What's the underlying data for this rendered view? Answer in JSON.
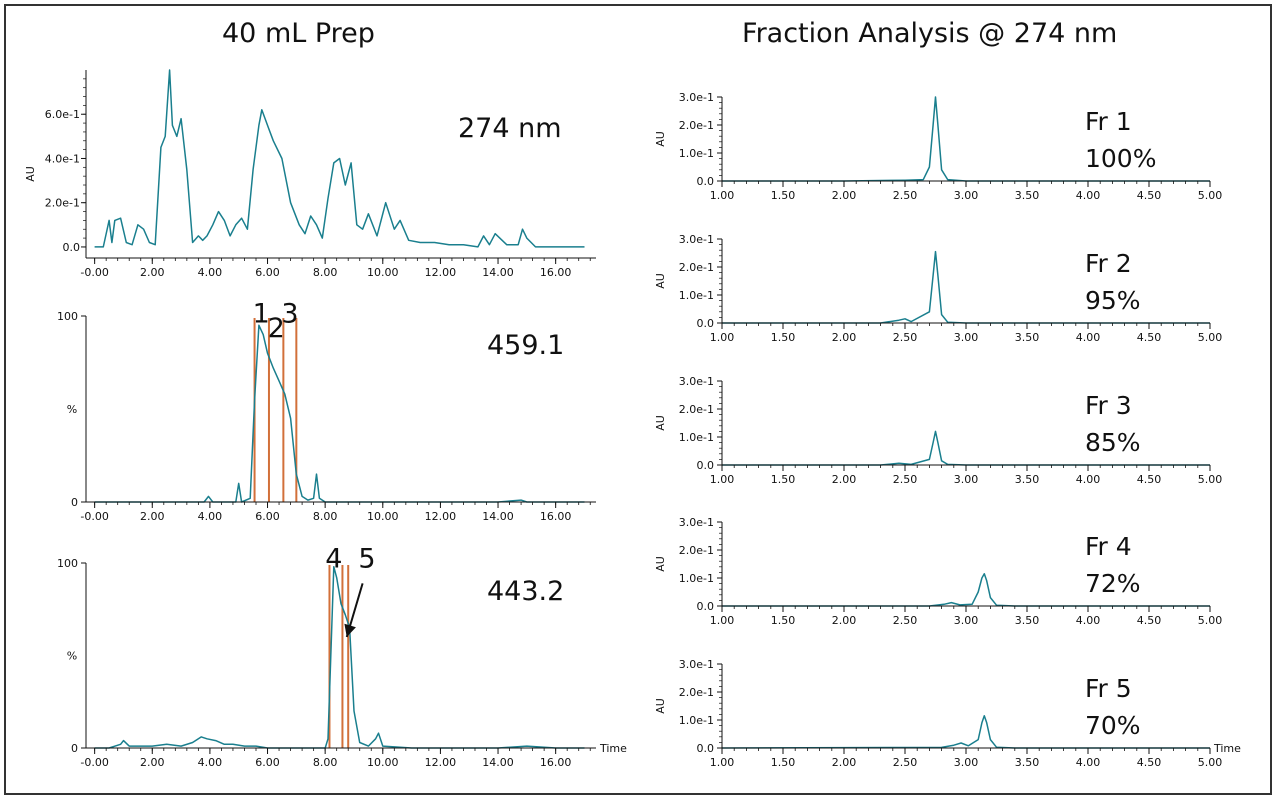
{
  "left_heading": "40 mL Prep",
  "right_heading": "Fraction Analysis @ 274 nm",
  "colors": {
    "trace": "#1a7f8e",
    "cut": "#d2703a",
    "axis": "#111111"
  },
  "chart_data": [
    {
      "id": "uv274",
      "type": "line",
      "trace_label": "274 nm",
      "ylabel": "AU",
      "xlabel": "",
      "xlim": [
        -0.3,
        17.4
      ],
      "ylim": [
        -0.05,
        0.8
      ],
      "x_ticks": [
        "-0.00",
        "2.00",
        "4.00",
        "6.00",
        "8.00",
        "10.00",
        "12.00",
        "14.00",
        "16.00"
      ],
      "y_ticks": [
        "0.0",
        "2.0e-1",
        "4.0e-1",
        "6.0e-1"
      ],
      "series": [
        {
          "x": [
            0,
            0.3,
            0.5,
            0.6,
            0.7,
            0.9,
            1.1,
            1.3,
            1.5,
            1.7,
            1.9,
            2.1,
            2.3,
            2.45,
            2.6,
            2.7,
            2.85,
            3.0,
            3.2,
            3.4,
            3.6,
            3.75,
            3.9,
            4.1,
            4.3,
            4.5,
            4.7,
            4.9,
            5.1,
            5.3,
            5.5,
            5.7,
            5.8,
            6.0,
            6.2,
            6.5,
            6.8,
            7.1,
            7.3,
            7.5,
            7.7,
            7.9,
            8.1,
            8.3,
            8.5,
            8.7,
            8.9,
            9.1,
            9.3,
            9.5,
            9.8,
            10.1,
            10.4,
            10.6,
            10.9,
            11.3,
            11.8,
            12.3,
            12.8,
            13.3,
            13.5,
            13.7,
            13.9,
            14.3,
            14.7,
            14.85,
            15.0,
            15.3,
            16.0,
            17.0
          ],
          "y": [
            0,
            0.0,
            0.12,
            0.02,
            0.12,
            0.13,
            0.02,
            0.01,
            0.1,
            0.08,
            0.02,
            0.01,
            0.45,
            0.5,
            0.8,
            0.55,
            0.5,
            0.58,
            0.35,
            0.02,
            0.05,
            0.03,
            0.05,
            0.1,
            0.16,
            0.12,
            0.05,
            0.1,
            0.13,
            0.08,
            0.35,
            0.55,
            0.62,
            0.55,
            0.48,
            0.4,
            0.2,
            0.1,
            0.06,
            0.14,
            0.1,
            0.04,
            0.22,
            0.38,
            0.4,
            0.28,
            0.38,
            0.1,
            0.08,
            0.15,
            0.05,
            0.2,
            0.08,
            0.12,
            0.03,
            0.02,
            0.02,
            0.01,
            0.01,
            0.0,
            0.05,
            0.01,
            0.06,
            0.01,
            0.01,
            0.08,
            0.04,
            0.0,
            0.0,
            0.0
          ]
        }
      ]
    },
    {
      "id": "ms459",
      "type": "line",
      "trace_label": "459.1",
      "ylabel": "%",
      "xlabel": "",
      "xlim": [
        -0.3,
        17.4
      ],
      "ylim": [
        0,
        100
      ],
      "x_ticks": [
        "-0.00",
        "2.00",
        "4.00",
        "6.00",
        "8.00",
        "10.00",
        "12.00",
        "14.00",
        "16.00"
      ],
      "y_ticks": [
        "0",
        "100"
      ],
      "fraction_cuts": [
        5.55,
        6.05,
        6.55,
        7.0
      ],
      "fraction_labels": [
        {
          "text": "1",
          "x": 5.78,
          "y": 102
        },
        {
          "text": "2",
          "x": 6.3,
          "y": 94
        },
        {
          "text": "3",
          "x": 6.78,
          "y": 102
        }
      ],
      "series": [
        {
          "x": [
            0,
            1,
            2,
            3,
            3.8,
            3.95,
            4.1,
            4.5,
            4.9,
            5.0,
            5.1,
            5.4,
            5.55,
            5.7,
            5.85,
            6.0,
            6.2,
            6.4,
            6.6,
            6.8,
            7.0,
            7.2,
            7.4,
            7.6,
            7.7,
            7.8,
            8.0,
            9,
            10,
            11,
            12,
            13,
            14,
            14.8,
            15,
            16,
            17
          ],
          "y": [
            0,
            0,
            0,
            0,
            0,
            3,
            0,
            0,
            0,
            10,
            0,
            2,
            55,
            95,
            90,
            80,
            72,
            65,
            58,
            45,
            15,
            3,
            1,
            2,
            15,
            2,
            0,
            0,
            0,
            0,
            0,
            0,
            0,
            1,
            0,
            0,
            0
          ]
        }
      ]
    },
    {
      "id": "ms443",
      "type": "line",
      "trace_label": "443.2",
      "ylabel": "%",
      "xlabel": "Time",
      "xlim": [
        -0.3,
        17.4
      ],
      "ylim": [
        0,
        100
      ],
      "x_ticks": [
        "-0.00",
        "2.00",
        "4.00",
        "6.00",
        "8.00",
        "10.00",
        "12.00",
        "14.00",
        "16.00"
      ],
      "y_ticks": [
        "0",
        "100"
      ],
      "fraction_cuts": [
        8.15,
        8.6,
        8.8
      ],
      "fraction_labels": [
        {
          "text": "4",
          "x": 8.3,
          "y": 103
        },
        {
          "text": "5",
          "x": 9.45,
          "y": 103
        }
      ],
      "arrow": {
        "x1": 9.3,
        "y1": 89,
        "x2": 8.75,
        "y2": 60
      },
      "series": [
        {
          "x": [
            0,
            0.5,
            0.9,
            1.0,
            1.2,
            1.5,
            2.0,
            2.5,
            3.0,
            3.4,
            3.7,
            3.9,
            4.2,
            4.5,
            4.8,
            5.2,
            5.6,
            6.0,
            7.0,
            8.0,
            8.1,
            8.3,
            8.4,
            8.55,
            8.7,
            8.85,
            9.0,
            9.2,
            9.5,
            9.75,
            9.85,
            10.0,
            11,
            12,
            13,
            14,
            15,
            16,
            17
          ],
          "y": [
            0,
            0,
            2,
            4,
            1,
            1,
            1,
            2,
            1,
            3,
            6,
            5,
            4,
            2,
            2,
            1,
            1,
            0,
            0,
            0,
            5,
            98,
            92,
            78,
            72,
            65,
            20,
            3,
            1,
            5,
            8,
            1,
            0,
            0,
            0,
            0,
            1,
            0,
            0
          ]
        }
      ]
    },
    {
      "id": "fr1",
      "type": "line",
      "trace_label": "Fr 1",
      "purity_label": "100%",
      "ylabel": "AU",
      "xlabel": "",
      "xlim": [
        1.0,
        5.0
      ],
      "ylim": [
        0,
        0.3
      ],
      "x_ticks": [
        "1.00",
        "1.50",
        "2.00",
        "2.50",
        "3.00",
        "3.50",
        "4.00",
        "4.50",
        "5.00"
      ],
      "y_ticks": [
        "0.0",
        "1.0e-1",
        "2.0e-1",
        "3.0e-1"
      ],
      "series": [
        {
          "x": [
            1.0,
            2.0,
            2.5,
            2.65,
            2.7,
            2.73,
            2.75,
            2.77,
            2.8,
            2.85,
            3.0,
            5.0
          ],
          "y": [
            0,
            0,
            0.003,
            0.005,
            0.05,
            0.2,
            0.3,
            0.2,
            0.04,
            0.005,
            0,
            0
          ]
        }
      ]
    },
    {
      "id": "fr2",
      "type": "line",
      "trace_label": "Fr 2",
      "purity_label": "95%",
      "ylabel": "AU",
      "xlabel": "",
      "xlim": [
        1.0,
        5.0
      ],
      "ylim": [
        0,
        0.3
      ],
      "x_ticks": [
        "1.00",
        "1.50",
        "2.00",
        "2.50",
        "3.00",
        "3.50",
        "4.00",
        "4.50",
        "5.00"
      ],
      "y_ticks": [
        "0.0",
        "1.0e-1",
        "2.0e-1",
        "3.0e-1"
      ],
      "series": [
        {
          "x": [
            1.0,
            2.3,
            2.45,
            2.5,
            2.55,
            2.7,
            2.73,
            2.75,
            2.77,
            2.8,
            2.85,
            3.0,
            5.0
          ],
          "y": [
            0,
            0,
            0.01,
            0.015,
            0.005,
            0.04,
            0.17,
            0.255,
            0.17,
            0.03,
            0.003,
            0,
            0
          ]
        }
      ]
    },
    {
      "id": "fr3",
      "type": "line",
      "trace_label": "Fr 3",
      "purity_label": "85%",
      "ylabel": "AU",
      "xlabel": "",
      "xlim": [
        1.0,
        5.0
      ],
      "ylim": [
        0,
        0.3
      ],
      "x_ticks": [
        "1.00",
        "1.50",
        "2.00",
        "2.50",
        "3.00",
        "3.50",
        "4.00",
        "4.50",
        "5.00"
      ],
      "y_ticks": [
        "0.0",
        "1.0e-1",
        "2.0e-1",
        "3.0e-1"
      ],
      "series": [
        {
          "x": [
            1.0,
            2.3,
            2.45,
            2.55,
            2.7,
            2.73,
            2.75,
            2.77,
            2.8,
            2.85,
            3.0,
            5.0
          ],
          "y": [
            0,
            0,
            0.006,
            0.002,
            0.02,
            0.08,
            0.12,
            0.08,
            0.015,
            0.002,
            0,
            0
          ]
        }
      ]
    },
    {
      "id": "fr4",
      "type": "line",
      "trace_label": "Fr 4",
      "purity_label": "72%",
      "ylabel": "AU",
      "xlabel": "",
      "xlim": [
        1.0,
        5.0
      ],
      "ylim": [
        0,
        0.3
      ],
      "x_ticks": [
        "1.00",
        "1.50",
        "2.00",
        "2.50",
        "3.00",
        "3.50",
        "4.00",
        "4.50",
        "5.00"
      ],
      "y_ticks": [
        "0.0",
        "1.0e-1",
        "2.0e-1",
        "3.0e-1"
      ],
      "series": [
        {
          "x": [
            1.0,
            2.7,
            2.82,
            2.88,
            2.95,
            3.05,
            3.1,
            3.13,
            3.15,
            3.17,
            3.2,
            3.25,
            3.4,
            5.0
          ],
          "y": [
            0,
            0,
            0.006,
            0.012,
            0.004,
            0.006,
            0.05,
            0.1,
            0.115,
            0.09,
            0.03,
            0.003,
            0,
            0
          ]
        }
      ]
    },
    {
      "id": "fr5",
      "type": "line",
      "trace_label": "Fr 5",
      "purity_label": "70%",
      "ylabel": "AU",
      "xlabel": "Time",
      "xlim": [
        1.0,
        5.0
      ],
      "ylim": [
        0,
        0.3
      ],
      "x_ticks": [
        "1.00",
        "1.50",
        "2.00",
        "2.50",
        "3.00",
        "3.50",
        "4.00",
        "4.50",
        "5.00"
      ],
      "y_ticks": [
        "0.0",
        "1.0e-1",
        "2.0e-1",
        "3.0e-1"
      ],
      "series": [
        {
          "x": [
            1.0,
            2.8,
            2.9,
            2.96,
            3.02,
            3.1,
            3.13,
            3.15,
            3.17,
            3.2,
            3.25,
            3.4,
            5.0
          ],
          "y": [
            0,
            0.002,
            0.01,
            0.018,
            0.008,
            0.03,
            0.09,
            0.115,
            0.09,
            0.03,
            0.003,
            0,
            0
          ]
        }
      ]
    }
  ]
}
